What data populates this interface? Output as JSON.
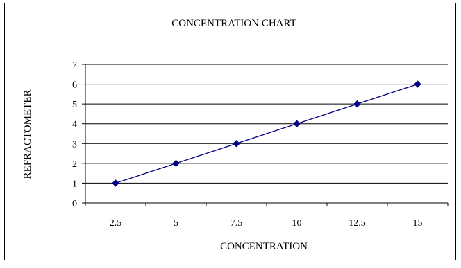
{
  "chart_data": {
    "type": "line",
    "title": "CONCENTRATION CHART",
    "xlabel": "CONCENTRATION",
    "ylabel": "REFRACTOMETER",
    "categories": [
      "2.5",
      "5",
      "7.5",
      "10",
      "12.5",
      "15"
    ],
    "series": [
      {
        "values": [
          1,
          2,
          3,
          4,
          5,
          6
        ]
      }
    ],
    "ylim": [
      0,
      7
    ],
    "yticks": [
      "0",
      "1",
      "2",
      "3",
      "4",
      "5",
      "6",
      "7"
    ],
    "grid": "horizontal",
    "legend": "none",
    "colors": {
      "series": "#000080",
      "grid": "#000000",
      "axis": "#000000"
    }
  }
}
